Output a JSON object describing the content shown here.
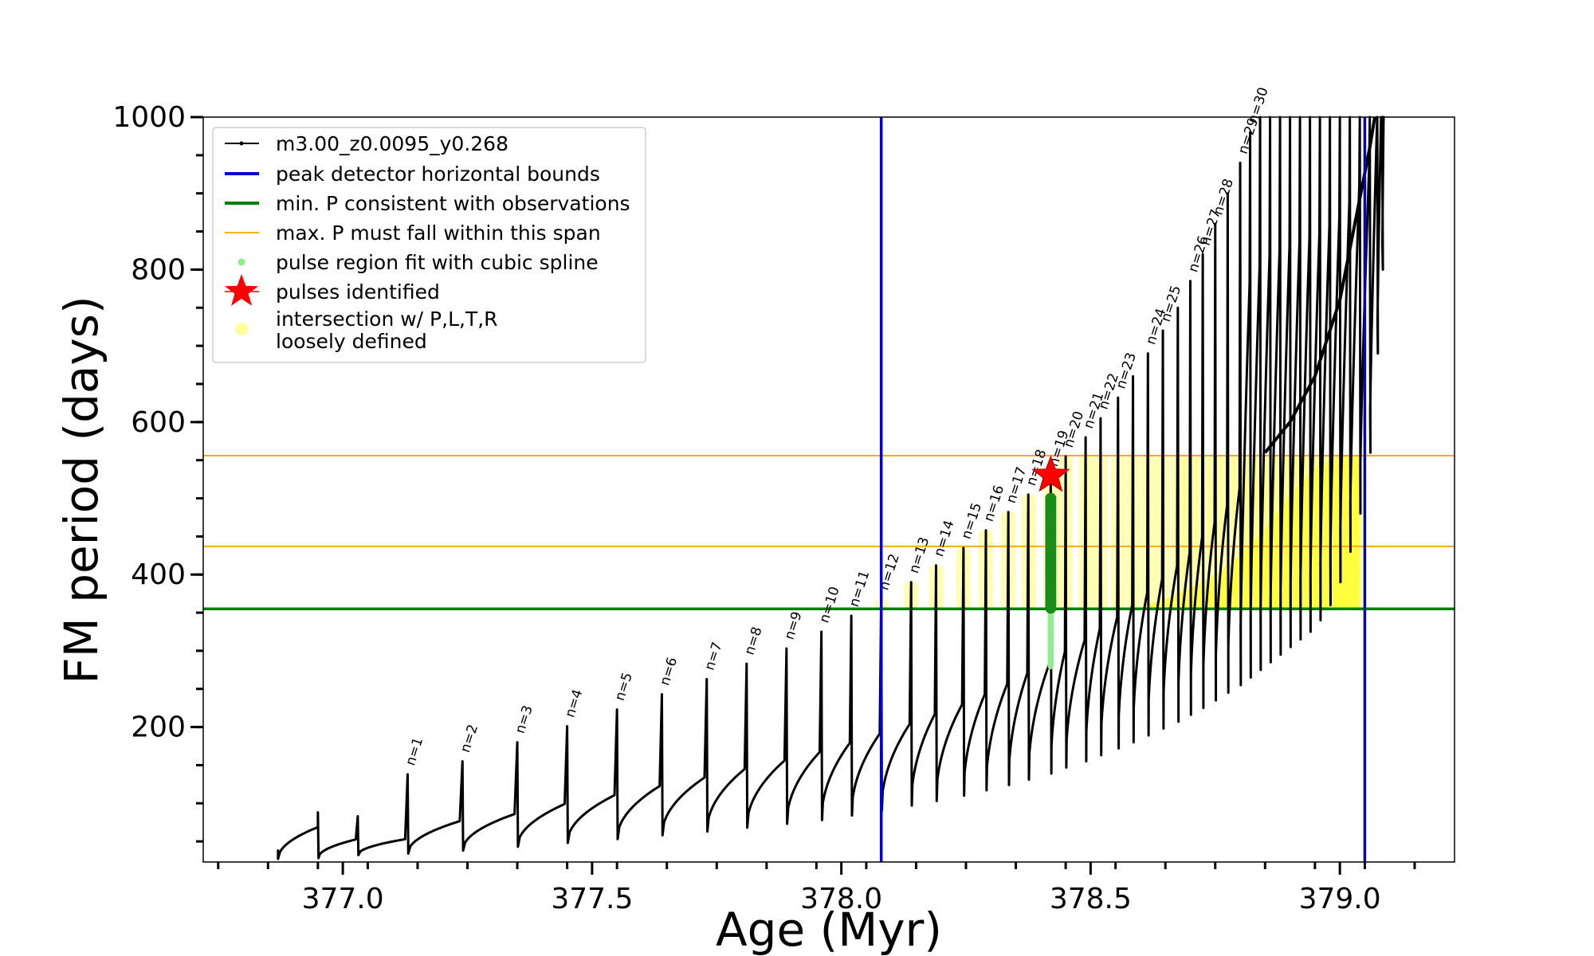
{
  "chart_data": {
    "type": "line",
    "xlabel": "Age (Myr)",
    "ylabel": "FM period (days)",
    "xlim": [
      376.72,
      379.23
    ],
    "ylim": [
      23,
      1000
    ],
    "xticks": [
      377.0,
      377.5,
      378.0,
      378.5,
      379.0
    ],
    "xtick_labels": [
      "377.0",
      "377.5",
      "378.0",
      "378.5",
      "379.0"
    ],
    "yticks": [
      200,
      400,
      600,
      800,
      1000
    ],
    "ytick_labels": [
      "200",
      "400",
      "600",
      "800",
      "1000"
    ],
    "legend_placement": "top-left",
    "legend": [
      {
        "label": "m3.00_z0.0095_y0.268",
        "marker": "line-dot",
        "color": "#000000"
      },
      {
        "label": "peak detector horizontal bounds",
        "marker": "line",
        "color": "#0000dd"
      },
      {
        "label": "min. P consistent with observations",
        "marker": "line",
        "color": "#008000"
      },
      {
        "label": "max. P must fall within this span",
        "marker": "thin-line",
        "color": "#ffa500"
      },
      {
        "label": "pulse region fit with cubic spline",
        "marker": "dot",
        "color": "#90ee90"
      },
      {
        "label": "pulses identified",
        "marker": "star",
        "color": "#ff0000"
      },
      {
        "label": "intersection w/ P,L,T,R\nloosely defined",
        "marker": "dot",
        "color": "#ffff99"
      }
    ],
    "bounds": {
      "peak_detector_x": [
        378.08,
        379.05
      ],
      "min_P": 355,
      "max_P_span": [
        437,
        556
      ]
    },
    "series": [
      {
        "name": "m3.00_z0.0095_y0.268",
        "pulses": [
          {
            "n": "",
            "x": 376.95,
            "peak": 88,
            "trough": 28,
            "x_next": 377.03
          },
          {
            "n": "",
            "x": 377.03,
            "peak": 83,
            "trough": 32,
            "x_next": 377.13
          },
          {
            "n": "n=1",
            "x": 377.13,
            "peak": 138,
            "trough": 34,
            "x_next": 377.24
          },
          {
            "n": "n=2",
            "x": 377.24,
            "peak": 155,
            "trough": 38,
            "x_next": 377.35
          },
          {
            "n": "n=3",
            "x": 377.35,
            "peak": 180,
            "trough": 43,
            "x_next": 377.45
          },
          {
            "n": "n=4",
            "x": 377.45,
            "peak": 201,
            "trough": 48,
            "x_next": 377.55
          },
          {
            "n": "n=5",
            "x": 377.55,
            "peak": 223,
            "trough": 53,
            "x_next": 377.64
          },
          {
            "n": "n=6",
            "x": 377.64,
            "peak": 243,
            "trough": 58,
            "x_next": 377.73
          },
          {
            "n": "n=7",
            "x": 377.73,
            "peak": 263,
            "trough": 63,
            "x_next": 377.81
          },
          {
            "n": "n=8",
            "x": 377.81,
            "peak": 283,
            "trough": 68,
            "x_next": 377.89
          },
          {
            "n": "n=9",
            "x": 377.89,
            "peak": 303,
            "trough": 73,
            "x_next": 377.96
          },
          {
            "n": "n=10",
            "x": 377.96,
            "peak": 325,
            "trough": 78,
            "x_next": 378.02
          },
          {
            "n": "n=11",
            "x": 378.02,
            "peak": 346,
            "trough": 84,
            "x_next": 378.08
          },
          {
            "n": "n=12",
            "x": 378.08,
            "peak": 368,
            "trough": 90,
            "x_next": 378.14
          },
          {
            "n": "n=13",
            "x": 378.14,
            "peak": 390,
            "trough": 97,
            "x_next": 378.19
          },
          {
            "n": "n=14",
            "x": 378.19,
            "peak": 412,
            "trough": 103,
            "x_next": 378.245
          },
          {
            "n": "n=15",
            "x": 378.245,
            "peak": 435,
            "trough": 110,
            "x_next": 378.29
          },
          {
            "n": "n=16",
            "x": 378.29,
            "peak": 458,
            "trough": 117,
            "x_next": 378.335
          },
          {
            "n": "n=17",
            "x": 378.335,
            "peak": 482,
            "trough": 124,
            "x_next": 378.375
          },
          {
            "n": "n=18",
            "x": 378.375,
            "peak": 505,
            "trough": 131,
            "x_next": 378.42
          },
          {
            "n": "n=19",
            "x": 378.42,
            "peak": 530,
            "trough": 139,
            "x_next": 378.45
          },
          {
            "n": "n=20",
            "x": 378.45,
            "peak": 555,
            "trough": 147,
            "x_next": 378.49
          },
          {
            "n": "n=21",
            "x": 378.49,
            "peak": 580,
            "trough": 155,
            "x_next": 378.52
          },
          {
            "n": "n=22",
            "x": 378.52,
            "peak": 605,
            "trough": 163,
            "x_next": 378.555
          },
          {
            "n": "n=23",
            "x": 378.555,
            "peak": 632,
            "trough": 172,
            "x_next": 378.585
          },
          {
            "n": "",
            "x": 378.585,
            "peak": 660,
            "trough": 180,
            "x_next": 378.615
          },
          {
            "n": "n=24",
            "x": 378.615,
            "peak": 690,
            "trough": 189,
            "x_next": 378.645
          },
          {
            "n": "n=25",
            "x": 378.645,
            "peak": 720,
            "trough": 198,
            "x_next": 378.675
          },
          {
            "n": "",
            "x": 378.675,
            "peak": 750,
            "trough": 207,
            "x_next": 378.7
          },
          {
            "n": "n=26",
            "x": 378.7,
            "peak": 785,
            "trough": 216,
            "x_next": 378.725
          },
          {
            "n": "n=27",
            "x": 378.725,
            "peak": 820,
            "trough": 225,
            "x_next": 378.75
          },
          {
            "n": "n=28",
            "x": 378.75,
            "peak": 860,
            "trough": 235,
            "x_next": 378.775
          },
          {
            "n": "",
            "x": 378.775,
            "peak": 900,
            "trough": 245,
            "x_next": 378.8
          },
          {
            "n": "n=29",
            "x": 378.8,
            "peak": 940,
            "trough": 255,
            "x_next": 378.82
          },
          {
            "n": "n=30",
            "x": 378.82,
            "peak": 980,
            "trough": 265,
            "x_next": 378.84
          },
          {
            "n": "",
            "x": 378.84,
            "peak": 1000,
            "trough": 275,
            "x_next": 378.86
          },
          {
            "n": "",
            "x": 378.86,
            "peak": 1000,
            "trough": 285,
            "x_next": 378.88
          },
          {
            "n": "",
            "x": 378.88,
            "peak": 1000,
            "trough": 295,
            "x_next": 378.9
          },
          {
            "n": "",
            "x": 378.9,
            "peak": 1000,
            "trough": 305,
            "x_next": 378.92
          },
          {
            "n": "",
            "x": 378.92,
            "peak": 1000,
            "trough": 315,
            "x_next": 378.94
          },
          {
            "n": "",
            "x": 378.94,
            "peak": 1000,
            "trough": 325,
            "x_next": 378.96
          },
          {
            "n": "",
            "x": 378.96,
            "peak": 1000,
            "trough": 340,
            "x_next": 378.98
          },
          {
            "n": "",
            "x": 378.98,
            "peak": 1000,
            "trough": 360,
            "x_next": 379.0
          },
          {
            "n": "",
            "x": 379.0,
            "peak": 1000,
            "trough": 390,
            "x_next": 379.02
          },
          {
            "n": "",
            "x": 379.02,
            "peak": 1000,
            "trough": 430,
            "x_next": 379.04
          },
          {
            "n": "",
            "x": 379.04,
            "peak": 1000,
            "trough": 480,
            "x_next": 379.06
          },
          {
            "n": "",
            "x": 379.06,
            "peak": 1000,
            "trough": 560,
            "x_next": 379.075
          },
          {
            "n": "",
            "x": 379.075,
            "peak": 1000,
            "trough": 690,
            "x_next": 379.085
          },
          {
            "n": "",
            "x": 379.085,
            "peak": 1000,
            "trough": 800,
            "x_next": 379.09
          }
        ]
      }
    ],
    "identified_pulse": {
      "label": "n=19",
      "x": 378.42,
      "y": 530,
      "spline_range": [
        280,
        500
      ]
    }
  }
}
